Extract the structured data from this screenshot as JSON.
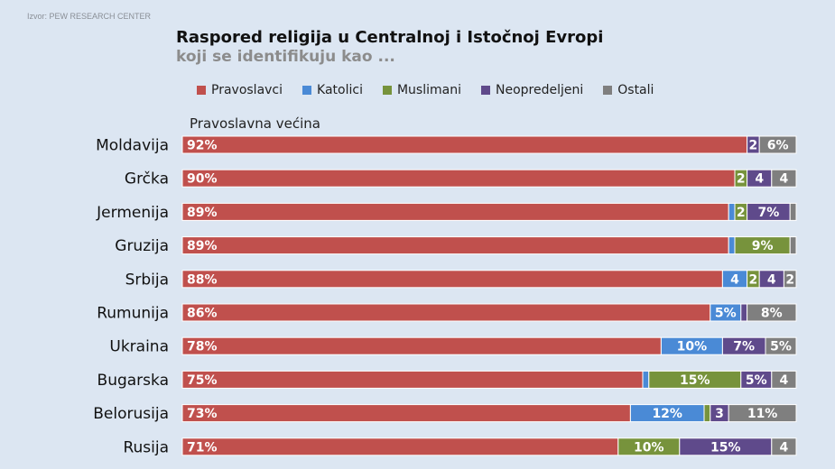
{
  "source": "Izvor: PEW RESEARCH CENTER",
  "chart_data": {
    "type": "bar",
    "orientation": "horizontal",
    "stacked": true,
    "title": "Raspored religija u Centralnoj i Istočnoj Evropi",
    "subtitle": "koji se identifikuju kao ...",
    "group_label": "Pravoslavna većina",
    "legend_position": "top",
    "xlim": [
      0,
      100
    ],
    "categories": [
      "Moldavija",
      "Grčka",
      "Jermenija",
      "Gruzija",
      "Srbija",
      "Rumunija",
      "Ukraina",
      "Bugarska",
      "Belorusija",
      "Rusija"
    ],
    "series": [
      {
        "name": "Pravoslavci",
        "color": "#c0504d",
        "values": [
          92,
          90,
          89,
          89,
          88,
          86,
          78,
          75,
          73,
          71
        ],
        "labels": [
          "92%",
          "90%",
          "89%",
          "89%",
          "88%",
          "86%",
          "78%",
          "75%",
          "73%",
          "71%"
        ]
      },
      {
        "name": "Katolici",
        "color": "#4a8ad6",
        "values": [
          0,
          0,
          1,
          1,
          4,
          5,
          10,
          1,
          12,
          0
        ],
        "labels": [
          "",
          "",
          "",
          "",
          "4",
          "5%",
          "10%",
          "",
          "12%",
          ""
        ]
      },
      {
        "name": "Muslimani",
        "color": "#77933c",
        "values": [
          0,
          2,
          2,
          9,
          2,
          0,
          0,
          15,
          1,
          10
        ],
        "labels": [
          "",
          "2",
          "2",
          "9%",
          "2",
          "",
          "",
          "15%",
          "",
          "10%"
        ]
      },
      {
        "name": "Neopredeljeni",
        "color": "#5f4a8b",
        "values": [
          2,
          4,
          7,
          0,
          4,
          1,
          7,
          5,
          3,
          15
        ],
        "labels": [
          "2",
          "4",
          "7%",
          "",
          "4",
          "",
          "7%",
          "5%",
          "3",
          "15%"
        ]
      },
      {
        "name": "Ostali",
        "color": "#7f7f7f",
        "values": [
          6,
          4,
          1,
          1,
          2,
          8,
          5,
          4,
          11,
          4
        ],
        "labels": [
          "6%",
          "4",
          "",
          "",
          "2",
          "8%",
          "5%",
          "4",
          "11%",
          "4"
        ]
      }
    ]
  }
}
